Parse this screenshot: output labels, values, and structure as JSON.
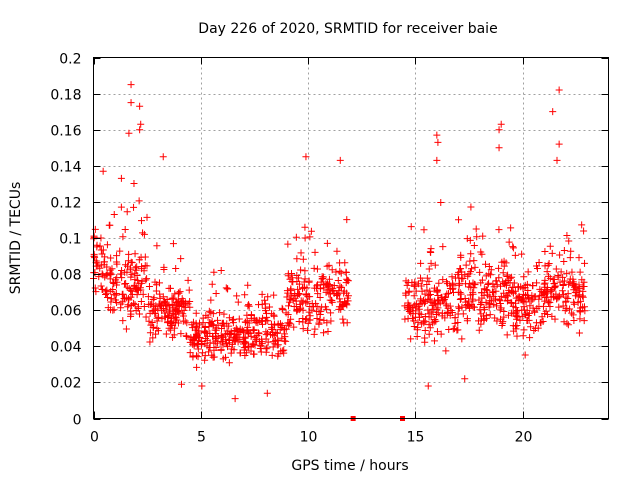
{
  "chart_data": {
    "type": "scatter",
    "title": "Day 226 of 2020, SRMTID for receiver baie",
    "xlabel": "GPS time / hours",
    "ylabel": "SRMTID / TECUs",
    "xlim": [
      0,
      24
    ],
    "ylim": [
      0,
      0.2
    ],
    "xticks": [
      0,
      5,
      10,
      15,
      20
    ],
    "xtick_labels": [
      "0",
      "5",
      "10",
      "15",
      "20"
    ],
    "yticks": [
      0,
      0.02,
      0.04,
      0.06,
      0.08,
      0.1,
      0.12,
      0.14,
      0.16,
      0.18,
      0.2
    ],
    "ytick_labels": [
      "0",
      "0.02",
      "0.04",
      "0.06",
      "0.08",
      "0.1",
      "0.12",
      "0.14",
      "0.16",
      "0.18",
      "0.2"
    ],
    "grid": true,
    "marker": "plus",
    "color": "#ff0000",
    "data_gap_hours": [
      12.0,
      14.5
    ],
    "zero_markers_x": [
      12.1,
      14.4
    ],
    "outliers": [
      {
        "x": 1.75,
        "y": 0.185
      },
      {
        "x": 1.75,
        "y": 0.175
      },
      {
        "x": 2.15,
        "y": 0.173
      },
      {
        "x": 2.2,
        "y": 0.163
      },
      {
        "x": 2.15,
        "y": 0.16
      },
      {
        "x": 1.65,
        "y": 0.158
      },
      {
        "x": 21.7,
        "y": 0.182
      },
      {
        "x": 21.4,
        "y": 0.17
      },
      {
        "x": 19.0,
        "y": 0.163
      },
      {
        "x": 18.9,
        "y": 0.16
      },
      {
        "x": 16.0,
        "y": 0.157
      },
      {
        "x": 16.05,
        "y": 0.153
      },
      {
        "x": 9.9,
        "y": 0.145
      },
      {
        "x": 11.5,
        "y": 0.143
      },
      {
        "x": 3.25,
        "y": 0.145
      },
      {
        "x": 18.9,
        "y": 0.15
      },
      {
        "x": 21.7,
        "y": 0.152
      },
      {
        "x": 21.6,
        "y": 0.143
      },
      {
        "x": 0.45,
        "y": 0.137
      },
      {
        "x": 1.3,
        "y": 0.133
      },
      {
        "x": 16.0,
        "y": 0.143
      },
      {
        "x": 5.05,
        "y": 0.018
      },
      {
        "x": 6.6,
        "y": 0.011
      },
      {
        "x": 15.6,
        "y": 0.018
      },
      {
        "x": 8.1,
        "y": 0.014
      },
      {
        "x": 4.1,
        "y": 0.019
      },
      {
        "x": 17.3,
        "y": 0.022
      }
    ],
    "bands": [
      {
        "x": [
          0,
          0.5
        ],
        "center": 0.085,
        "spread": 0.028
      },
      {
        "x": [
          0.5,
          2.5
        ],
        "center": 0.075,
        "spread": 0.033
      },
      {
        "x": [
          2.5,
          4.5
        ],
        "center": 0.06,
        "spread": 0.026
      },
      {
        "x": [
          4.5,
          7.0
        ],
        "center": 0.045,
        "spread": 0.02
      },
      {
        "x": [
          7.0,
          9.0
        ],
        "center": 0.048,
        "spread": 0.022
      },
      {
        "x": [
          9.0,
          10.5
        ],
        "center": 0.065,
        "spread": 0.03
      },
      {
        "x": [
          10.5,
          11.9
        ],
        "center": 0.068,
        "spread": 0.032
      },
      {
        "x": [
          14.5,
          15.5
        ],
        "center": 0.062,
        "spread": 0.028
      },
      {
        "x": [
          15.5,
          17.0
        ],
        "center": 0.065,
        "spread": 0.03
      },
      {
        "x": [
          17.0,
          19.5
        ],
        "center": 0.068,
        "spread": 0.032
      },
      {
        "x": [
          19.5,
          21.0
        ],
        "center": 0.062,
        "spread": 0.028
      },
      {
        "x": [
          21.0,
          22.9
        ],
        "center": 0.068,
        "spread": 0.026
      }
    ]
  }
}
